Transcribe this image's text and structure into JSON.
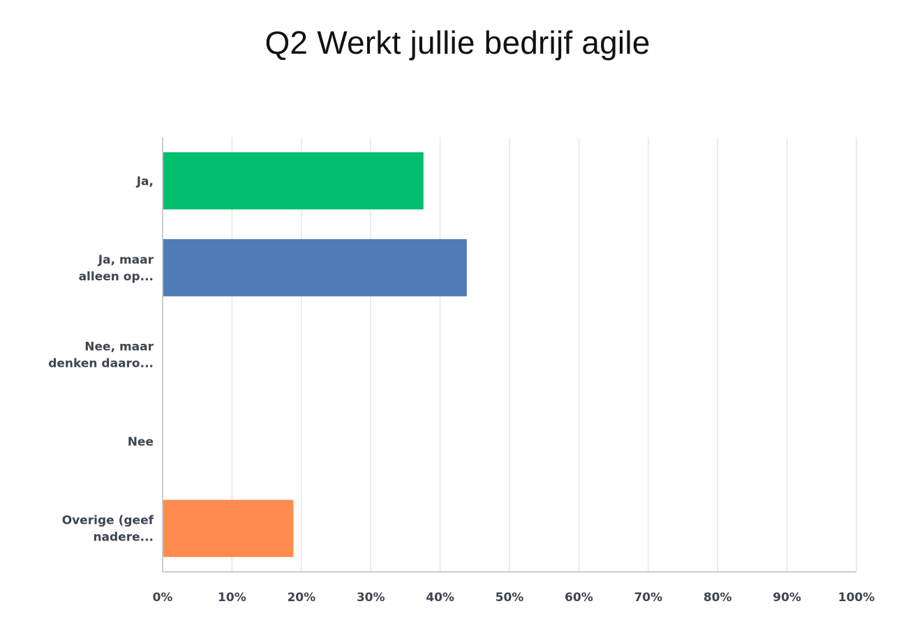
{
  "chart_data": {
    "type": "bar",
    "orientation": "horizontal",
    "title": "Q2 Werkt jullie bedrijf agile",
    "categories": [
      [
        "Ja,"
      ],
      [
        "Ja, maar",
        "alleen op..."
      ],
      [
        "Nee, maar",
        "denken daaro..."
      ],
      [
        "Nee"
      ],
      [
        "Overige (geef",
        "nadere..."
      ]
    ],
    "values": [
      37.5,
      43.75,
      0,
      0,
      18.75
    ],
    "colors": [
      "#00bf6f",
      "#507cb6",
      "#f9be00",
      "#6bc8cd",
      "#ff8b4f"
    ],
    "xlim": [
      0,
      100
    ],
    "ticks": [
      "0%",
      "10%",
      "20%",
      "30%",
      "40%",
      "50%",
      "60%",
      "70%",
      "80%",
      "90%",
      "100%"
    ],
    "grid": true,
    "legend": "none"
  }
}
